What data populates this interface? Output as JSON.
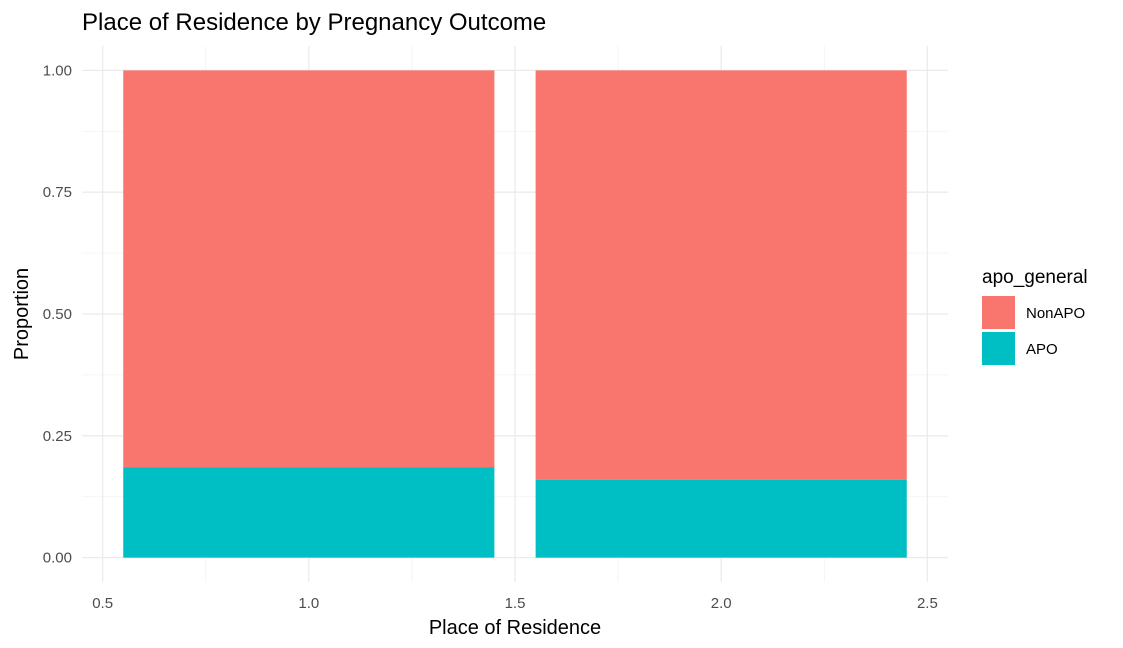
{
  "chart_data": {
    "type": "bar",
    "stacked": true,
    "title": "Place of Residence by Pregnancy Outcome",
    "xlabel": "Place of Residence",
    "ylabel": "Proportion",
    "x": [
      1.0,
      2.0
    ],
    "bar_width": 0.9,
    "series": [
      {
        "name": "APO",
        "color": "#00BFC4",
        "values": [
          0.185,
          0.16
        ]
      },
      {
        "name": "NonAPO",
        "color": "#F8766D",
        "values": [
          0.815,
          0.84
        ]
      }
    ],
    "xlim": [
      0.45,
      2.55
    ],
    "ylim": [
      -0.05,
      1.05
    ],
    "x_ticks": [
      0.5,
      1.0,
      1.5,
      2.0,
      2.5
    ],
    "x_tick_labels": [
      "0.5",
      "1.0",
      "1.5",
      "2.0",
      "2.5"
    ],
    "y_ticks": [
      0,
      0.25,
      0.5,
      0.75,
      1.0
    ],
    "y_tick_labels": [
      "0.00",
      "0.25",
      "0.50",
      "0.75",
      "1.00"
    ],
    "grid": true,
    "legend": {
      "title": "apo_general",
      "position": "right",
      "items": [
        {
          "label": "NonAPO",
          "color": "#F8766D"
        },
        {
          "label": "APO",
          "color": "#00BFC4"
        }
      ]
    }
  }
}
